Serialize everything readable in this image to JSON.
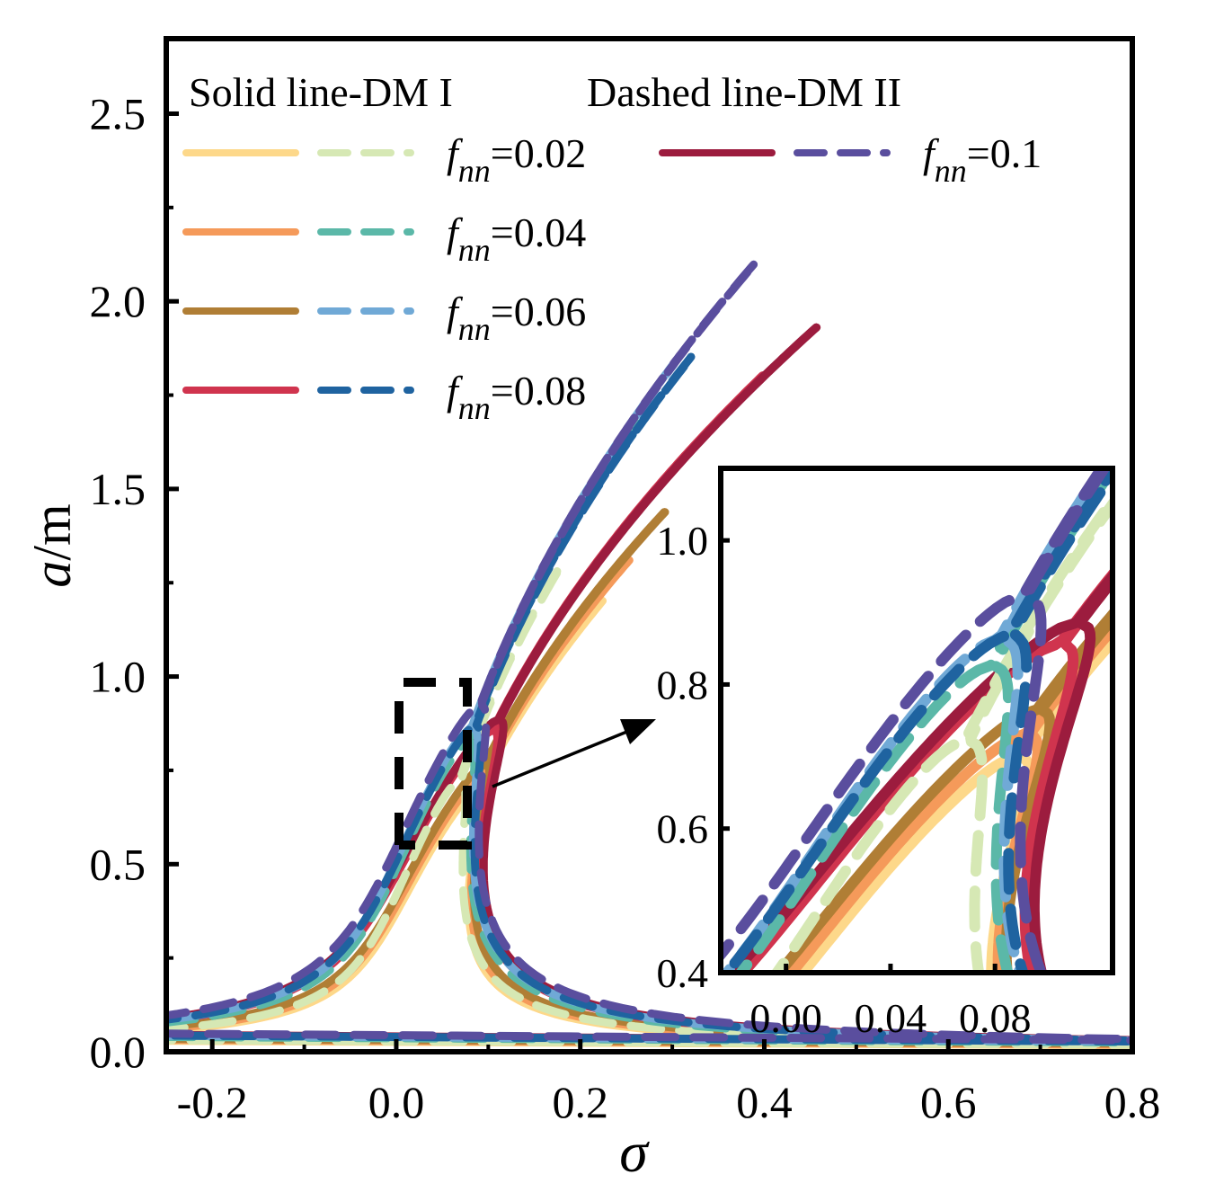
{
  "chart_data": {
    "type": "line",
    "title": "",
    "xlabel": "σ",
    "ylabel_italic": "a",
    "ylabel_rest": "/m",
    "xlim": [
      -0.25,
      0.8
    ],
    "ylim": [
      0,
      2.7
    ],
    "xticks": [
      "-0.2",
      "0.0",
      "0.2",
      "0.4",
      "0.6",
      "0.8"
    ],
    "yticks": [
      "0.0",
      "0.5",
      "1.0",
      "1.5",
      "2.0",
      "2.5"
    ],
    "legend": {
      "solid_label": "Solid line-DM I",
      "dashed_label": "Dashed line-DM II",
      "param_symbol": "f",
      "param_subscript": "nn",
      "entries": [
        {
          "label": "=0.02",
          "solid_color": "#fdd88a",
          "dashed_color": "#d6e8b4"
        },
        {
          "label": "=0.04",
          "solid_color": "#f59a5a",
          "dashed_color": "#5bb8a8"
        },
        {
          "label": "=0.06",
          "solid_color": "#b07e35",
          "dashed_color": "#70a9d6"
        },
        {
          "label": "=0.08",
          "solid_color": "#d0344e",
          "dashed_color": "#1f63a0"
        },
        {
          "label": "=0.1",
          "solid_color": "#9c1c3e",
          "dashed_color": "#5a4e9e"
        }
      ]
    },
    "series": [
      {
        "name": "DM I fnn=0.02",
        "style": "solid",
        "color": "#fdd88a",
        "peak_sigma": 0.23,
        "peak_a": 1.22
      },
      {
        "name": "DM I fnn=0.04",
        "style": "solid",
        "color": "#f59a5a",
        "peak_sigma": 0.26,
        "peak_a": 1.33
      },
      {
        "name": "DM I fnn=0.06",
        "style": "solid",
        "color": "#b07e35",
        "peak_sigma": 0.3,
        "peak_a": 1.46
      },
      {
        "name": "DM I fnn=0.08",
        "style": "solid",
        "color": "#d0344e",
        "peak_sigma": 0.41,
        "peak_a": 1.83
      },
      {
        "name": "DM I fnn=0.1",
        "style": "solid",
        "color": "#9c1c3e",
        "peak_sigma": 0.47,
        "peak_a": 1.96
      },
      {
        "name": "DM II fnn=0.02",
        "style": "dashed",
        "color": "#d6e8b4",
        "peak_sigma": 0.18,
        "peak_a": 1.3
      },
      {
        "name": "DM II fnn=0.04",
        "style": "dashed",
        "color": "#5bb8a8",
        "peak_sigma": 0.27,
        "peak_a": 1.7
      },
      {
        "name": "DM II fnn=0.06",
        "style": "dashed",
        "color": "#70a9d6",
        "peak_sigma": 0.31,
        "peak_a": 1.86
      },
      {
        "name": "DM II fnn=0.08",
        "style": "dashed",
        "color": "#1f63a0",
        "peak_sigma": 0.33,
        "peak_a": 1.88
      },
      {
        "name": "DM II fnn=0.1",
        "style": "dashed",
        "color": "#5a4e9e",
        "peak_sigma": 0.4,
        "peak_a": 2.13
      }
    ],
    "zoom_box": {
      "xlim": [
        0.0,
        0.08
      ],
      "ylim": [
        0.55,
        1.0
      ]
    },
    "inset": {
      "xlim": [
        -0.025,
        0.125
      ],
      "ylim": [
        0.4,
        1.1
      ],
      "xticks": [
        "0.00",
        "0.04",
        "0.08"
      ],
      "yticks": [
        "0.4",
        "0.6",
        "0.8",
        "1.0"
      ]
    }
  }
}
